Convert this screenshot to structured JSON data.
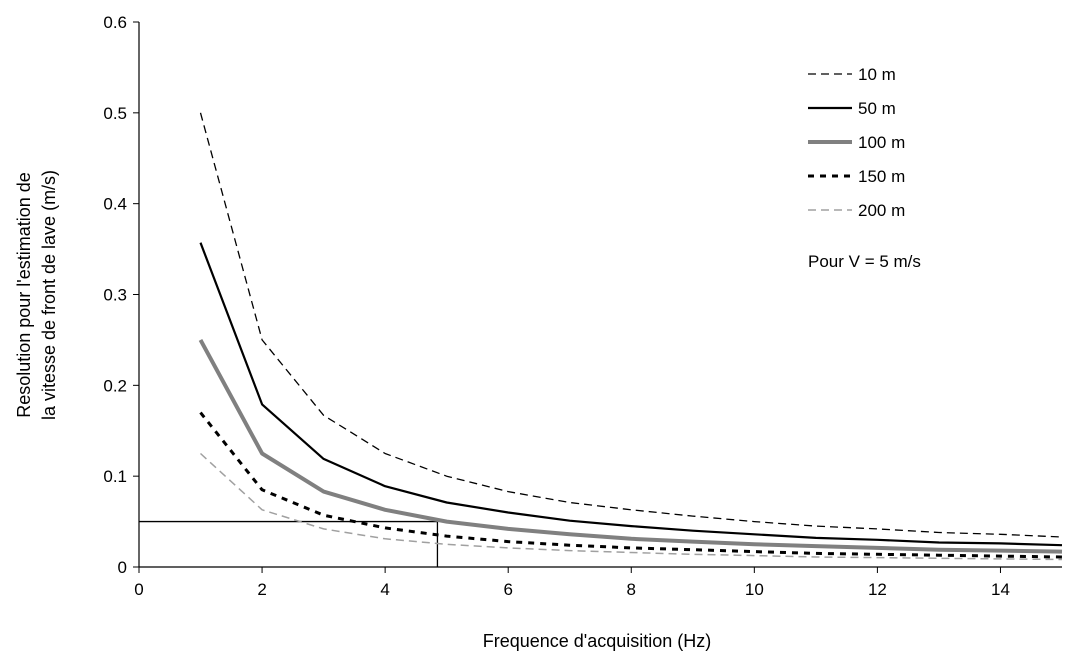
{
  "chart_data": {
    "type": "line",
    "title": "",
    "xlabel": "Frequence d'acquisition (Hz)",
    "ylabel_lines": [
      "Resolution pour l'estimation de",
      "la vitesse de front de lave (m/s)"
    ],
    "xlim": [
      0,
      15
    ],
    "ylim": [
      0,
      0.6
    ],
    "xticks": [
      0,
      2,
      4,
      6,
      8,
      10,
      12,
      14
    ],
    "xtick_labels": [
      "0",
      "2",
      "4",
      "6",
      "8",
      "10",
      "12",
      "14"
    ],
    "yticks": [
      0,
      0.1,
      0.2,
      0.3,
      0.4,
      0.5,
      0.6
    ],
    "ytick_labels": [
      "0",
      "0.1",
      "0.2",
      "0.3",
      "0.4",
      "0.5",
      "0.6"
    ],
    "grid": false,
    "legend_position": "top-right",
    "x": [
      1,
      2,
      3,
      4,
      5,
      6,
      7,
      8,
      9,
      10,
      11,
      12,
      13,
      14,
      15
    ],
    "series": [
      {
        "name": "10 m",
        "color": "#000000",
        "style": "dashed",
        "values": [
          0.5,
          0.25,
          0.167,
          0.125,
          0.1,
          0.083,
          0.071,
          0.063,
          0.056,
          0.05,
          0.045,
          0.042,
          0.038,
          0.036,
          0.033
        ]
      },
      {
        "name": "50 m",
        "color": "#000000",
        "style": "solid",
        "values": [
          0.357,
          0.179,
          0.119,
          0.089,
          0.071,
          0.06,
          0.051,
          0.045,
          0.04,
          0.036,
          0.032,
          0.03,
          0.027,
          0.026,
          0.024
        ]
      },
      {
        "name": "100 m",
        "color": "#808080",
        "style": "solid-thick",
        "values": [
          0.25,
          0.125,
          0.083,
          0.063,
          0.05,
          0.042,
          0.036,
          0.031,
          0.028,
          0.025,
          0.023,
          0.021,
          0.019,
          0.018,
          0.017
        ]
      },
      {
        "name": "150 m",
        "color": "#000000",
        "style": "dotted",
        "values": [
          0.17,
          0.085,
          0.057,
          0.043,
          0.034,
          0.028,
          0.024,
          0.021,
          0.019,
          0.017,
          0.015,
          0.014,
          0.013,
          0.012,
          0.011
        ]
      },
      {
        "name": "200 m",
        "color": "#a0a0a0",
        "style": "dashed-light",
        "values": [
          0.125,
          0.063,
          0.042,
          0.031,
          0.025,
          0.021,
          0.018,
          0.016,
          0.014,
          0.0125,
          0.011,
          0.0104,
          0.0096,
          0.0089,
          0.0083
        ]
      }
    ],
    "annotation": "Pour V = 5 m/s",
    "reference_lines": {
      "y": 0.05,
      "x": 4.85
    }
  }
}
